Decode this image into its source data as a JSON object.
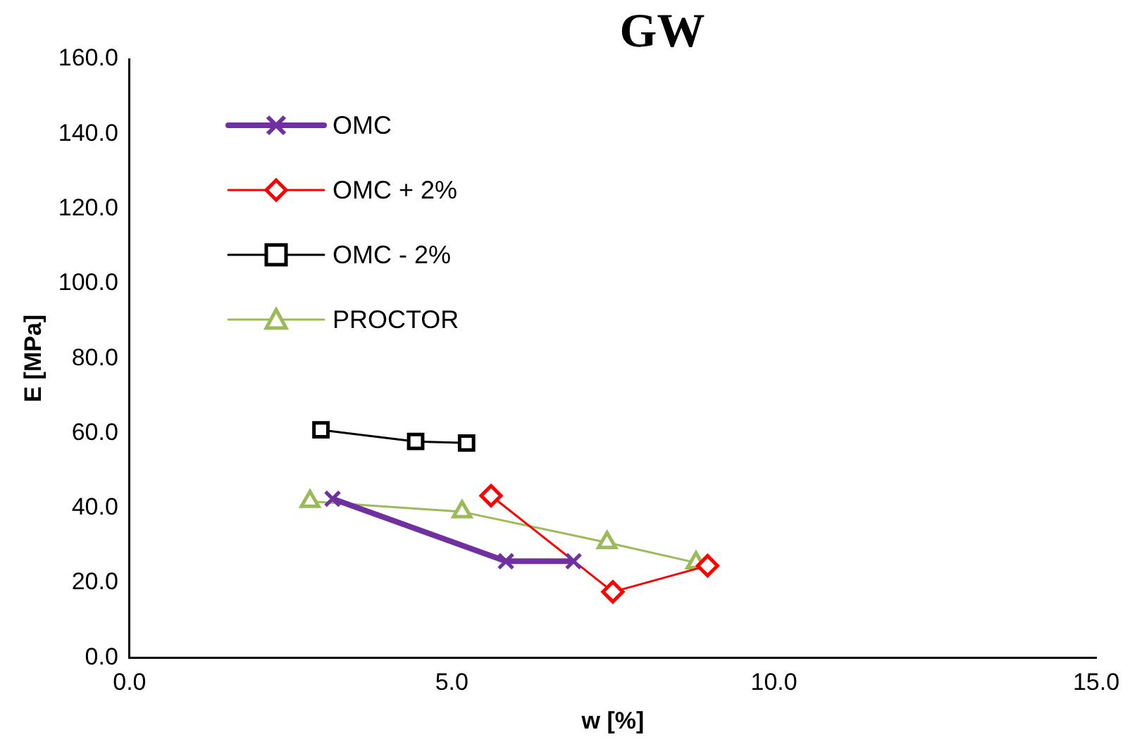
{
  "chart_data": {
    "type": "line",
    "title": "GW",
    "xlabel": "w [%]",
    "ylabel": "E [MPa]",
    "xlim": [
      0,
      15
    ],
    "xticks": [
      {
        "value": 0,
        "label": "0.0"
      },
      {
        "value": 5,
        "label": "5.0"
      },
      {
        "value": 10,
        "label": "10.0"
      },
      {
        "value": 15,
        "label": "15.0"
      }
    ],
    "ylim": [
      0,
      160
    ],
    "yticks": [
      {
        "value": 0,
        "label": "0.0"
      },
      {
        "value": 20,
        "label": "20.0"
      },
      {
        "value": 40,
        "label": "40.0"
      },
      {
        "value": 60,
        "label": "60.0"
      },
      {
        "value": 80,
        "label": "80.0"
      },
      {
        "value": 100,
        "label": "100.0"
      },
      {
        "value": 120,
        "label": "120.0"
      },
      {
        "value": 140,
        "label": "140.0"
      },
      {
        "value": 160,
        "label": "160.0"
      }
    ],
    "grid": false,
    "legend": "top left",
    "line_style": "solid",
    "series": [
      {
        "name": "OMC",
        "color": "#7030a0",
        "marker": "cross",
        "x": [
          3.15,
          5.84,
          6.89
        ],
        "values": [
          42.5,
          25.8,
          25.8
        ]
      },
      {
        "name": "OMC + 2%",
        "color": "#ff0000",
        "marker": "diamond",
        "x": [
          5.61,
          7.5,
          8.97
        ],
        "values": [
          43.3,
          17.6,
          24.6
        ]
      },
      {
        "name": "OMC - 2%",
        "color": "#000000",
        "marker": "square",
        "x": [
          2.97,
          4.44,
          5.23
        ],
        "values": [
          60.9,
          57.8,
          57.4
        ]
      },
      {
        "name": "PROCTOR",
        "color": "#9bbb59",
        "marker": "triangle",
        "x": [
          2.8,
          5.16,
          7.41,
          8.79
        ],
        "values": [
          41.8,
          39.0,
          30.8,
          25.4
        ]
      }
    ]
  }
}
